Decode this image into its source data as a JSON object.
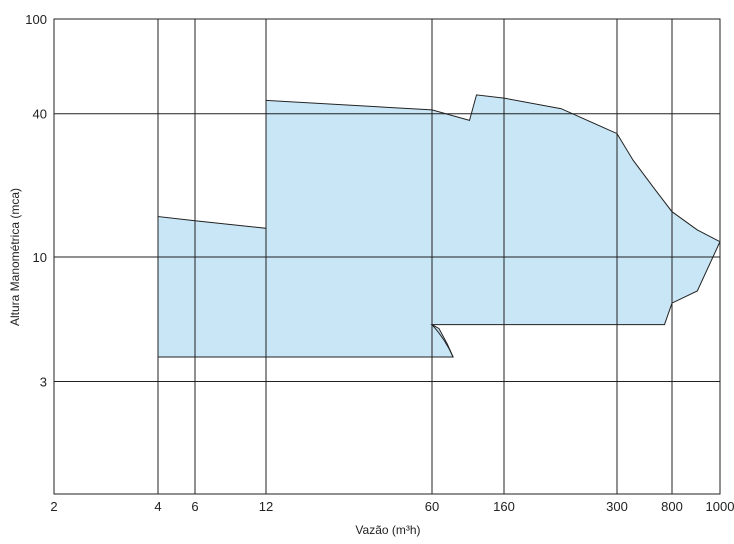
{
  "chart_data": {
    "type": "area",
    "xlabel": "Vazão (m³h)",
    "ylabel": "Altura Manométrica (mca)",
    "x_ticks": [
      {
        "label": "2"
      },
      {
        "label": "4"
      },
      {
        "label": "6"
      },
      {
        "label": "12"
      },
      {
        "label": "60"
      },
      {
        "label": "160"
      },
      {
        "label": "300"
      },
      {
        "label": "800"
      },
      {
        "label": "1000"
      }
    ],
    "y_ticks": [
      {
        "label": "100",
        "value": 100
      },
      {
        "label": "40",
        "value": 40
      },
      {
        "label": "10",
        "value": 10
      },
      {
        "label": "3",
        "value": 3
      }
    ],
    "ylim": [
      1.5,
      100
    ],
    "y_scale": "log",
    "x_scale": "categorical (non-uniform spacing, as printed)",
    "grid": true,
    "fill_color": "#c8e6f6",
    "outline_color": "#222222",
    "regions": [
      {
        "name": "",
        "points": [
          [
            4,
            3.8
          ],
          [
            4,
            14.8
          ],
          [
            6,
            14.2
          ],
          [
            12,
            13.2
          ],
          [
            12,
            45.5
          ],
          [
            60,
            38
          ],
          [
            75,
            36.5
          ]
        ]
      }
    ]
  }
}
